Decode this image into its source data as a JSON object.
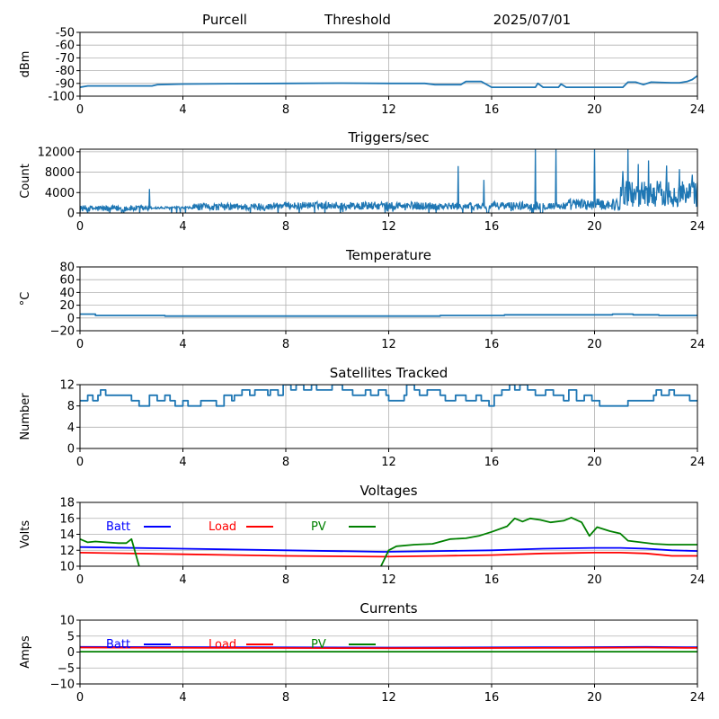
{
  "header": {
    "station": "Purcell",
    "mode": "Threshold",
    "date": "2025/07/01"
  },
  "chart_data": [
    {
      "type": "line",
      "title": "",
      "ylabel": "dBm",
      "xlim": [
        0,
        24
      ],
      "ylim": [
        -100,
        -50
      ],
      "yticks": [
        "-50",
        "-60",
        "-70",
        "-80",
        "-90",
        "-100"
      ],
      "ytick_values": [
        -50,
        -60,
        -70,
        -80,
        -90,
        -100
      ],
      "xticks": [
        "0",
        "4",
        "8",
        "12",
        "16",
        "20",
        "24"
      ],
      "grid": true,
      "series": [
        {
          "color": "#1f77b4",
          "x": [
            0,
            0.3,
            1.0,
            2.0,
            2.8,
            3.0,
            4,
            6,
            8,
            10,
            12,
            13.4,
            13.8,
            14.8,
            15.0,
            15.6,
            16.0,
            17.0,
            17.7,
            17.8,
            18.0,
            18.6,
            18.7,
            18.9,
            20.0,
            21.1,
            21.3,
            21.6,
            21.9,
            22.2,
            23.0,
            23.3,
            23.6,
            23.8,
            24.0
          ],
          "y": [
            -93,
            -92,
            -92,
            -92,
            -92,
            -91,
            -90.5,
            -90.2,
            -90,
            -89.8,
            -90,
            -90,
            -91,
            -91,
            -88.5,
            -88.5,
            -93,
            -93,
            -93,
            -90,
            -93,
            -93,
            -90.5,
            -93,
            -93,
            -93,
            -89,
            -89,
            -91,
            -89,
            -89.5,
            -89.5,
            -88.5,
            -87,
            -84
          ]
        }
      ]
    },
    {
      "type": "line",
      "title": "Triggers/sec",
      "ylabel": "Count",
      "xlim": [
        0,
        24
      ],
      "ylim": [
        0,
        12500
      ],
      "yticks": [
        "12000",
        "8000",
        "4000",
        "0"
      ],
      "ytick_values": [
        12000,
        8000,
        4000,
        0
      ],
      "xticks": [
        "0",
        "4",
        "8",
        "12",
        "16",
        "20",
        "24"
      ],
      "grid": true,
      "noise": {
        "color": "#1f77b4",
        "step": 0.02
      },
      "spikes": [
        {
          "x": 2.7,
          "y": 4700
        },
        {
          "x": 14.7,
          "y": 9200
        },
        {
          "x": 15.7,
          "y": 6500
        },
        {
          "x": 17.7,
          "y": 12500
        },
        {
          "x": 18.5,
          "y": 12500
        },
        {
          "x": 20.0,
          "y": 12500
        },
        {
          "x": 21.3,
          "y": 12500
        },
        {
          "x": 21.1,
          "y": 8200
        },
        {
          "x": 22.1,
          "y": 10300
        },
        {
          "x": 22.8,
          "y": 9300
        },
        {
          "x": 23.3,
          "y": 8600
        },
        {
          "x": 23.8,
          "y": 7500
        },
        {
          "x": 21.7,
          "y": 9600
        }
      ]
    },
    {
      "type": "line",
      "title": "Temperature",
      "ylabel": "°C",
      "xlim": [
        0,
        24
      ],
      "ylim": [
        -20,
        80
      ],
      "yticks": [
        "80",
        "60",
        "40",
        "20",
        "0",
        "−20"
      ],
      "ytick_values": [
        80,
        60,
        40,
        20,
        0,
        -20
      ],
      "xticks": [
        "0",
        "4",
        "8",
        "12",
        "16",
        "20",
        "24"
      ],
      "grid": true,
      "series": [
        {
          "color": "#1f77b4",
          "x": [
            0,
            0.6,
            0.6,
            3.3,
            3.3,
            14,
            14,
            16.5,
            16.5,
            20.7,
            20.7,
            21.5,
            21.5,
            22.5,
            22.5,
            24
          ],
          "y": [
            6,
            6,
            4,
            4,
            3,
            3,
            4,
            4,
            5,
            5,
            6,
            6,
            5,
            5,
            4,
            4
          ]
        }
      ]
    },
    {
      "type": "line",
      "title": "Satellites Tracked",
      "ylabel": "Number",
      "xlim": [
        0,
        24
      ],
      "ylim": [
        0,
        12
      ],
      "yticks": [
        "12",
        "8",
        "4",
        "0"
      ],
      "ytick_values": [
        12,
        8,
        4,
        0
      ],
      "xticks": [
        "0",
        "4",
        "8",
        "12",
        "16",
        "20",
        "24"
      ],
      "grid": true,
      "series": [
        {
          "color": "#1f77b4",
          "step": true,
          "x": [
            0,
            0.3,
            0.5,
            0.7,
            0.8,
            1.0,
            1.3,
            2.0,
            2.3,
            2.7,
            3.0,
            3.3,
            3.5,
            3.7,
            4.0,
            4.2,
            4.7,
            5.0,
            5.3,
            5.6,
            5.9,
            6.0,
            6.3,
            6.6,
            6.8,
            7.3,
            7.4,
            7.7,
            7.9,
            8.2,
            8.4,
            8.7,
            9.0,
            9.2,
            9.5,
            9.8,
            10.2,
            10.6,
            11.1,
            11.3,
            11.6,
            11.9,
            12.0,
            12.6,
            12.7,
            13.0,
            13.2,
            13.5,
            14.0,
            14.2,
            14.6,
            15.0,
            15.4,
            15.6,
            15.9,
            16.1,
            16.4,
            16.7,
            16.9,
            17.1,
            17.4,
            17.7,
            18.1,
            18.4,
            18.8,
            19.0,
            19.3,
            19.6,
            19.9,
            20.2,
            20.5,
            21.3,
            21.5,
            22.3,
            22.4,
            22.6,
            22.9,
            23.1,
            23.4,
            23.7,
            24
          ],
          "y": [
            9,
            10,
            9,
            10,
            11,
            10,
            10,
            9,
            8,
            10,
            9,
            10,
            9,
            8,
            9,
            8,
            9,
            9,
            8,
            10,
            9,
            10,
            11,
            10,
            11,
            10,
            11,
            10,
            12,
            11,
            12,
            11,
            12,
            11,
            11,
            12,
            11,
            10,
            11,
            10,
            11,
            10,
            9,
            10,
            12,
            11,
            10,
            11,
            10,
            9,
            10,
            9,
            10,
            9,
            8,
            10,
            11,
            12,
            11,
            12,
            11,
            10,
            11,
            10,
            9,
            11,
            9,
            10,
            9,
            8,
            8,
            9,
            9,
            10,
            11,
            10,
            11,
            10,
            10,
            9,
            9
          ]
        }
      ]
    },
    {
      "type": "line",
      "title": "Voltages",
      "ylabel": "Volts",
      "xlim": [
        0,
        24
      ],
      "ylim": [
        10,
        18
      ],
      "yticks": [
        "18",
        "16",
        "14",
        "12",
        "10"
      ],
      "ytick_values": [
        18,
        16,
        14,
        12,
        10
      ],
      "xticks": [
        "0",
        "4",
        "8",
        "12",
        "16",
        "20",
        "24"
      ],
      "grid": true,
      "legend": [
        {
          "label": "Batt",
          "color": "#0000ff"
        },
        {
          "label": "Load",
          "color": "#ff0000"
        },
        {
          "label": "PV",
          "color": "#008000"
        }
      ],
      "series": [
        {
          "name": "Batt",
          "color": "#0000ff",
          "x": [
            0,
            4,
            8,
            11.8,
            14,
            16,
            18,
            20,
            21,
            22,
            23,
            24
          ],
          "y": [
            12.4,
            12.2,
            12.0,
            11.8,
            11.9,
            12.0,
            12.2,
            12.3,
            12.3,
            12.2,
            12.0,
            11.9
          ]
        },
        {
          "name": "Load",
          "color": "#ff0000",
          "x": [
            0,
            4,
            8,
            11.8,
            14,
            16,
            18,
            20,
            21,
            22,
            23,
            24
          ],
          "y": [
            11.7,
            11.5,
            11.3,
            11.2,
            11.3,
            11.4,
            11.6,
            11.7,
            11.7,
            11.6,
            11.3,
            11.3
          ]
        },
        {
          "name": "PV",
          "color": "#008000",
          "x": [
            0,
            0.3,
            0.6,
            1.0,
            1.5,
            1.8,
            2.0,
            2.3
          ],
          "y": [
            13.4,
            13.0,
            13.1,
            13.0,
            12.9,
            12.9,
            13.4,
            10
          ]
        },
        {
          "name": "PV",
          "color": "#008000",
          "x": [
            11.7,
            12.0,
            12.3,
            13.0,
            13.7,
            14.4,
            15.0,
            15.5,
            16.0,
            16.6,
            16.9,
            17.2,
            17.5,
            17.9,
            18.3,
            18.8,
            19.1,
            19.5,
            19.8,
            20.1,
            20.6,
            21.0,
            21.3,
            21.8,
            22.3,
            22.9,
            23.5,
            24
          ],
          "y": [
            10,
            12.0,
            12.5,
            12.7,
            12.8,
            13.4,
            13.5,
            13.8,
            14.3,
            15.0,
            16.0,
            15.6,
            16.0,
            15.8,
            15.5,
            15.7,
            16.1,
            15.5,
            13.8,
            14.9,
            14.4,
            14.1,
            13.2,
            13.0,
            12.8,
            12.7,
            12.7,
            12.7
          ]
        }
      ]
    },
    {
      "type": "line",
      "title": "Currents",
      "ylabel": "Amps",
      "xlim": [
        0,
        24
      ],
      "ylim": [
        -10,
        10
      ],
      "yticks": [
        "10",
        "5",
        "0",
        "−5",
        "−10"
      ],
      "ytick_values": [
        10,
        5,
        0,
        -5,
        -10
      ],
      "xticks": [
        "0",
        "4",
        "8",
        "12",
        "16",
        "20",
        "24"
      ],
      "grid": true,
      "legend": [
        {
          "label": "Batt",
          "color": "#0000ff"
        },
        {
          "label": "Load",
          "color": "#ff0000"
        },
        {
          "label": "PV",
          "color": "#008000"
        }
      ],
      "series": [
        {
          "name": "Batt",
          "color": "#0000ff",
          "x": [
            0,
            6,
            12,
            18,
            22,
            24
          ],
          "y": [
            1.6,
            1.5,
            1.4,
            1.5,
            1.6,
            1.5
          ]
        },
        {
          "name": "Load",
          "color": "#ff0000",
          "x": [
            0,
            6,
            12,
            18,
            22,
            24
          ],
          "y": [
            1.4,
            1.3,
            1.2,
            1.3,
            1.4,
            1.3
          ]
        },
        {
          "name": "PV",
          "color": "#008000",
          "x": [
            0,
            24
          ],
          "y": [
            0.1,
            0.1
          ]
        }
      ]
    }
  ]
}
